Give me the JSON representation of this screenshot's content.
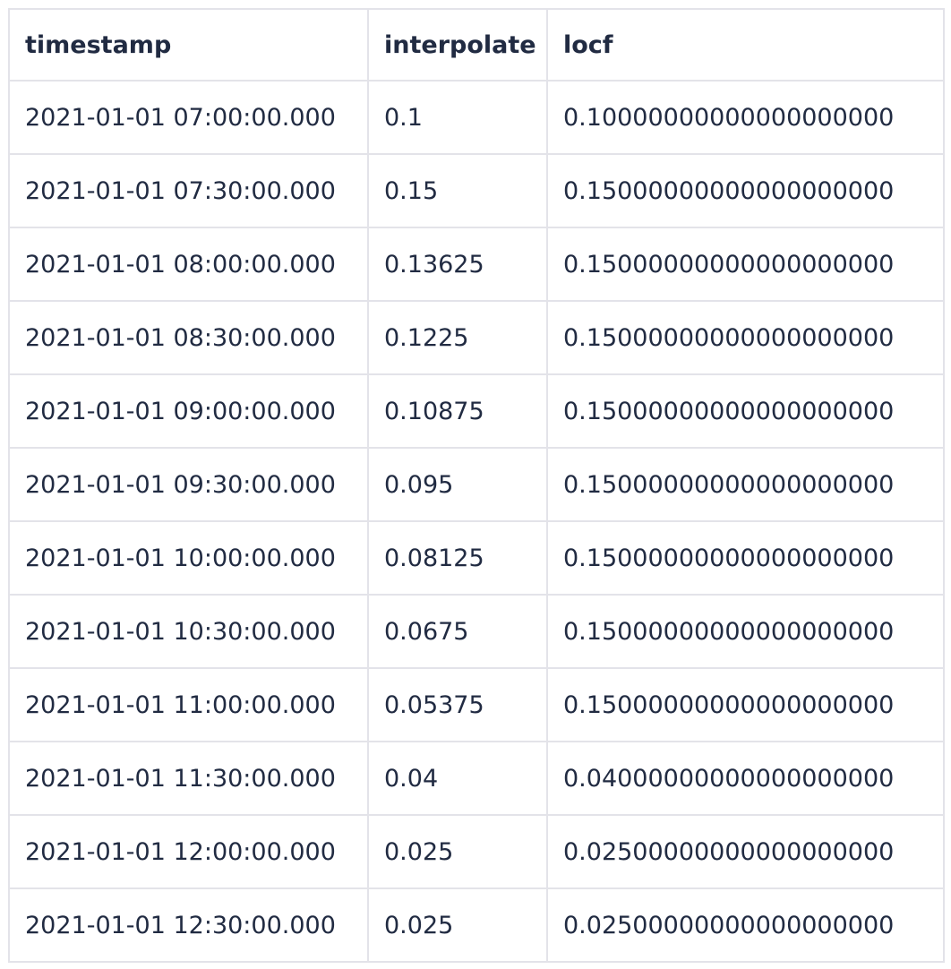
{
  "colors": {
    "text": "#212b42",
    "border": "#e3e3e9",
    "background": "#ffffff"
  },
  "chart_data": {
    "type": "table",
    "title": "",
    "columns": [
      "timestamp",
      "interpolate",
      "locf"
    ],
    "rows": [
      [
        "2021-01-01 07:00:00.000",
        "0.1",
        "0.10000000000000000000"
      ],
      [
        "2021-01-01 07:30:00.000",
        "0.15",
        "0.15000000000000000000"
      ],
      [
        "2021-01-01 08:00:00.000",
        "0.13625",
        "0.15000000000000000000"
      ],
      [
        "2021-01-01 08:30:00.000",
        "0.1225",
        "0.15000000000000000000"
      ],
      [
        "2021-01-01 09:00:00.000",
        "0.10875",
        "0.15000000000000000000"
      ],
      [
        "2021-01-01 09:30:00.000",
        "0.095",
        "0.15000000000000000000"
      ],
      [
        "2021-01-01 10:00:00.000",
        "0.08125",
        "0.15000000000000000000"
      ],
      [
        "2021-01-01 10:30:00.000",
        "0.0675",
        "0.15000000000000000000"
      ],
      [
        "2021-01-01 11:00:00.000",
        "0.05375",
        "0.15000000000000000000"
      ],
      [
        "2021-01-01 11:30:00.000",
        "0.04",
        "0.04000000000000000000"
      ],
      [
        "2021-01-01 12:00:00.000",
        "0.025",
        "0.02500000000000000000"
      ],
      [
        "2021-01-01 12:30:00.000",
        "0.025",
        "0.02500000000000000000"
      ]
    ]
  }
}
